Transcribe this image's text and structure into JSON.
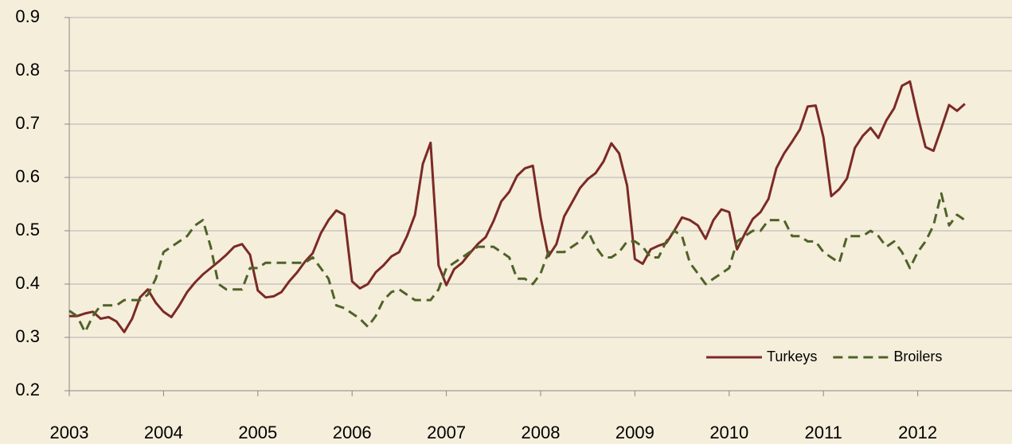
{
  "chart_data": {
    "type": "line",
    "x": [
      2003,
      2003.083,
      2003.167,
      2003.25,
      2003.333,
      2003.417,
      2003.5,
      2003.583,
      2003.667,
      2003.75,
      2003.833,
      2003.917,
      2004,
      2004.083,
      2004.167,
      2004.25,
      2004.333,
      2004.417,
      2004.5,
      2004.583,
      2004.667,
      2004.75,
      2004.833,
      2004.917,
      2005,
      2005.083,
      2005.167,
      2005.25,
      2005.333,
      2005.417,
      2005.5,
      2005.583,
      2005.667,
      2005.75,
      2005.833,
      2005.917,
      2006,
      2006.083,
      2006.167,
      2006.25,
      2006.333,
      2006.417,
      2006.5,
      2006.583,
      2006.667,
      2006.75,
      2006.833,
      2006.917,
      2007,
      2007.083,
      2007.167,
      2007.25,
      2007.333,
      2007.417,
      2007.5,
      2007.583,
      2007.667,
      2007.75,
      2007.833,
      2007.917,
      2008,
      2008.083,
      2008.167,
      2008.25,
      2008.333,
      2008.417,
      2008.5,
      2008.583,
      2008.667,
      2008.75,
      2008.833,
      2008.917,
      2009,
      2009.083,
      2009.167,
      2009.25,
      2009.333,
      2009.417,
      2009.5,
      2009.583,
      2009.667,
      2009.75,
      2009.833,
      2009.917,
      2010,
      2010.083,
      2010.167,
      2010.25,
      2010.333,
      2010.417,
      2010.5,
      2010.583,
      2010.667,
      2010.75,
      2010.833,
      2010.917,
      2011,
      2011.083,
      2011.167,
      2011.25,
      2011.333,
      2011.417,
      2011.5,
      2011.583,
      2011.667,
      2011.75,
      2011.833,
      2011.917,
      2012,
      2012.083,
      2012.167,
      2012.25,
      2012.333,
      2012.417,
      2012.5
    ],
    "series": [
      {
        "name": "Turkeys",
        "color": "#7b2a25",
        "dash": false,
        "values": [
          0.34,
          0.34,
          0.345,
          0.348,
          0.335,
          0.338,
          0.33,
          0.31,
          0.335,
          0.375,
          0.39,
          0.365,
          0.348,
          0.338,
          0.36,
          0.385,
          0.403,
          0.418,
          0.43,
          0.442,
          0.455,
          0.47,
          0.475,
          0.455,
          0.388,
          0.375,
          0.377,
          0.385,
          0.405,
          0.422,
          0.442,
          0.458,
          0.495,
          0.52,
          0.538,
          0.53,
          0.405,
          0.392,
          0.4,
          0.422,
          0.435,
          0.452,
          0.46,
          0.49,
          0.53,
          0.625,
          0.665,
          0.435,
          0.398,
          0.428,
          0.44,
          0.458,
          0.475,
          0.488,
          0.518,
          0.555,
          0.573,
          0.603,
          0.617,
          0.622,
          0.525,
          0.452,
          0.475,
          0.527,
          0.553,
          0.58,
          0.597,
          0.608,
          0.63,
          0.664,
          0.645,
          0.585,
          0.447,
          0.438,
          0.465,
          0.472,
          0.477,
          0.5,
          0.525,
          0.52,
          0.51,
          0.485,
          0.52,
          0.54,
          0.535,
          0.465,
          0.495,
          0.522,
          0.535,
          0.56,
          0.617,
          0.645,
          0.667,
          0.69,
          0.733,
          0.735,
          0.675,
          0.565,
          0.578,
          0.598,
          0.655,
          0.678,
          0.693,
          0.674,
          0.707,
          0.73,
          0.772,
          0.78,
          0.715,
          0.657,
          0.65,
          0.692,
          0.736,
          0.725,
          0.738
        ]
      },
      {
        "name": "Broilers",
        "color": "#4f6228",
        "dash": true,
        "values": [
          0.35,
          0.34,
          0.31,
          0.34,
          0.36,
          0.36,
          0.36,
          0.37,
          0.37,
          0.37,
          0.38,
          0.41,
          0.46,
          0.47,
          0.48,
          0.49,
          0.51,
          0.52,
          0.47,
          0.4,
          0.39,
          0.39,
          0.39,
          0.43,
          0.43,
          0.44,
          0.44,
          0.44,
          0.44,
          0.44,
          0.44,
          0.45,
          0.43,
          0.41,
          0.36,
          0.355,
          0.345,
          0.335,
          0.32,
          0.34,
          0.37,
          0.385,
          0.39,
          0.38,
          0.37,
          0.37,
          0.37,
          0.39,
          0.43,
          0.44,
          0.45,
          0.46,
          0.47,
          0.47,
          0.47,
          0.46,
          0.45,
          0.41,
          0.41,
          0.4,
          0.42,
          0.46,
          0.46,
          0.46,
          0.47,
          0.48,
          0.5,
          0.47,
          0.45,
          0.45,
          0.46,
          0.48,
          0.48,
          0.47,
          0.45,
          0.45,
          0.48,
          0.5,
          0.49,
          0.44,
          0.42,
          0.4,
          0.41,
          0.42,
          0.43,
          0.48,
          0.49,
          0.5,
          0.5,
          0.52,
          0.52,
          0.52,
          0.49,
          0.49,
          0.48,
          0.48,
          0.46,
          0.45,
          0.44,
          0.49,
          0.49,
          0.49,
          0.5,
          0.49,
          0.47,
          0.48,
          0.46,
          0.43,
          0.46,
          0.48,
          0.51,
          0.57,
          0.51,
          0.53,
          0.52
        ]
      }
    ],
    "xlim": [
      2003,
      2013
    ],
    "xticks": [
      2003,
      2004,
      2005,
      2006,
      2007,
      2008,
      2009,
      2010,
      2011,
      2012
    ],
    "ylim": [
      0.2,
      0.9
    ],
    "yticks": [
      0.2,
      0.3,
      0.4,
      0.5,
      0.6,
      0.7,
      0.8,
      0.9
    ],
    "grid": true,
    "legend": "bottom-right",
    "background": "#f5eedb"
  }
}
